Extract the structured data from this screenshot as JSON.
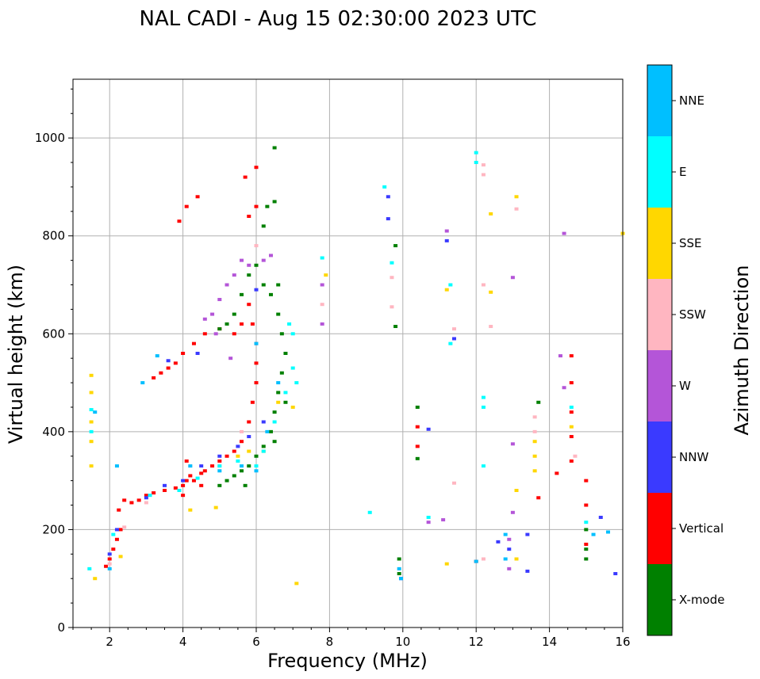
{
  "chart_data": {
    "type": "scatter",
    "title": "NAL CADI - Aug 15 02:30:00 2023 UTC",
    "xlabel": "Frequency (MHz)",
    "ylabel": "Virtual height (km)",
    "xlim": [
      1,
      16
    ],
    "ylim": [
      0,
      1120
    ],
    "xticks": [
      2,
      4,
      6,
      8,
      10,
      12,
      14,
      16
    ],
    "xtick_labels": [
      "2",
      "4",
      "6",
      "8",
      "10",
      "12",
      "14",
      "16"
    ],
    "yticks": [
      0,
      200,
      400,
      600,
      800,
      1000
    ],
    "ytick_labels": [
      "0",
      "200",
      "400",
      "600",
      "800",
      "1000"
    ],
    "grid": true,
    "colorbar": {
      "label": "Azimuth Direction",
      "categories": [
        {
          "name": "X-mode",
          "color": "#008000"
        },
        {
          "name": "Vertical",
          "color": "#ff0000"
        },
        {
          "name": "NNW",
          "color": "#3a3aff"
        },
        {
          "name": "W",
          "color": "#b455d8"
        },
        {
          "name": "SSW",
          "color": "#ffb6c1"
        },
        {
          "name": "SSE",
          "color": "#ffd700"
        },
        {
          "name": "E",
          "color": "#00ffff"
        },
        {
          "name": "NNE",
          "color": "#00bfff"
        }
      ]
    },
    "series": [
      {
        "name": "Vertical",
        "points": [
          [
            1.9,
            125
          ],
          [
            2.0,
            140
          ],
          [
            2.1,
            160
          ],
          [
            2.2,
            180
          ],
          [
            2.3,
            200
          ],
          [
            2.25,
            240
          ],
          [
            2.4,
            260
          ],
          [
            2.6,
            255
          ],
          [
            2.8,
            260
          ],
          [
            3.0,
            270
          ],
          [
            3.2,
            275
          ],
          [
            3.5,
            280
          ],
          [
            3.8,
            285
          ],
          [
            4.0,
            290
          ],
          [
            4.0,
            270
          ],
          [
            4.1,
            300
          ],
          [
            4.2,
            310
          ],
          [
            4.3,
            300
          ],
          [
            4.5,
            315
          ],
          [
            4.6,
            320
          ],
          [
            4.8,
            330
          ],
          [
            5.0,
            340
          ],
          [
            5.2,
            350
          ],
          [
            5.4,
            360
          ],
          [
            5.6,
            380
          ],
          [
            5.8,
            420
          ],
          [
            5.9,
            460
          ],
          [
            6.0,
            500
          ],
          [
            6.0,
            540
          ],
          [
            6.0,
            580
          ],
          [
            5.9,
            620
          ],
          [
            5.8,
            660
          ],
          [
            5.6,
            620
          ],
          [
            5.4,
            600
          ],
          [
            5.0,
            610
          ],
          [
            4.6,
            600
          ],
          [
            4.3,
            580
          ],
          [
            4.0,
            560
          ],
          [
            3.8,
            540
          ],
          [
            3.6,
            530
          ],
          [
            3.4,
            520
          ],
          [
            3.2,
            510
          ],
          [
            6.0,
            860
          ],
          [
            5.8,
            840
          ],
          [
            6.0,
            940
          ],
          [
            5.7,
            920
          ],
          [
            4.1,
            860
          ],
          [
            4.4,
            880
          ],
          [
            3.9,
            830
          ],
          [
            10.4,
            410
          ],
          [
            10.4,
            370
          ],
          [
            12.0,
            135
          ],
          [
            13.7,
            265
          ],
          [
            14.2,
            315
          ],
          [
            14.6,
            555
          ],
          [
            14.6,
            500
          ],
          [
            14.6,
            440
          ],
          [
            14.6,
            390
          ],
          [
            15.0,
            300
          ],
          [
            15.0,
            250
          ],
          [
            15.0,
            170
          ],
          [
            14.6,
            340
          ],
          [
            4.1,
            340
          ],
          [
            4.5,
            290
          ]
        ]
      },
      {
        "name": "X-mode",
        "points": [
          [
            5.0,
            290
          ],
          [
            5.2,
            300
          ],
          [
            5.4,
            310
          ],
          [
            5.6,
            320
          ],
          [
            5.8,
            330
          ],
          [
            6.0,
            350
          ],
          [
            6.2,
            370
          ],
          [
            6.4,
            400
          ],
          [
            6.5,
            440
          ],
          [
            6.6,
            480
          ],
          [
            6.7,
            520
          ],
          [
            6.8,
            560
          ],
          [
            6.7,
            600
          ],
          [
            6.6,
            640
          ],
          [
            6.4,
            680
          ],
          [
            6.2,
            700
          ],
          [
            6.0,
            740
          ],
          [
            5.8,
            720
          ],
          [
            5.6,
            680
          ],
          [
            5.4,
            640
          ],
          [
            5.2,
            620
          ],
          [
            5.0,
            610
          ],
          [
            6.2,
            820
          ],
          [
            6.5,
            870
          ],
          [
            6.5,
            980
          ],
          [
            6.3,
            860
          ],
          [
            6.6,
            700
          ],
          [
            9.8,
            780
          ],
          [
            9.8,
            615
          ],
          [
            9.9,
            140
          ],
          [
            9.9,
            110
          ],
          [
            10.4,
            450
          ],
          [
            10.4,
            345
          ],
          [
            13.7,
            460
          ],
          [
            15.0,
            160
          ],
          [
            15.0,
            200
          ],
          [
            15.0,
            140
          ],
          [
            6.8,
            460
          ],
          [
            6.5,
            380
          ],
          [
            5.7,
            290
          ]
        ]
      },
      {
        "name": "NNW",
        "points": [
          [
            2.0,
            150
          ],
          [
            2.2,
            200
          ],
          [
            3.0,
            265
          ],
          [
            3.5,
            290
          ],
          [
            4.0,
            300
          ],
          [
            4.5,
            330
          ],
          [
            5.0,
            350
          ],
          [
            5.5,
            370
          ],
          [
            5.8,
            390
          ],
          [
            6.2,
            420
          ],
          [
            3.6,
            545
          ],
          [
            4.4,
            560
          ],
          [
            6.0,
            690
          ],
          [
            9.6,
            880
          ],
          [
            9.6,
            835
          ],
          [
            11.2,
            790
          ],
          [
            11.4,
            590
          ],
          [
            12.9,
            160
          ],
          [
            13.4,
            190
          ],
          [
            13.4,
            115
          ],
          [
            12.6,
            175
          ],
          [
            15.4,
            225
          ],
          [
            15.8,
            110
          ],
          [
            9.95,
            100
          ],
          [
            10.7,
            405
          ]
        ]
      },
      {
        "name": "W",
        "points": [
          [
            5.2,
            700
          ],
          [
            5.4,
            720
          ],
          [
            5.6,
            750
          ],
          [
            5.8,
            740
          ],
          [
            6.2,
            750
          ],
          [
            6.4,
            760
          ],
          [
            5.0,
            670
          ],
          [
            4.8,
            640
          ],
          [
            4.6,
            630
          ],
          [
            5.3,
            550
          ],
          [
            4.9,
            600
          ],
          [
            7.8,
            620
          ],
          [
            7.8,
            700
          ],
          [
            11.2,
            810
          ],
          [
            13.0,
            715
          ],
          [
            13.0,
            375
          ],
          [
            13.0,
            235
          ],
          [
            10.7,
            215
          ],
          [
            11.1,
            220
          ],
          [
            14.4,
            490
          ],
          [
            14.3,
            555
          ],
          [
            14.4,
            805
          ],
          [
            12.9,
            120
          ],
          [
            12.9,
            180
          ]
        ]
      },
      {
        "name": "SSW",
        "points": [
          [
            2.0,
            130
          ],
          [
            2.4,
            205
          ],
          [
            3.0,
            255
          ],
          [
            4.2,
            330
          ],
          [
            5.0,
            330
          ],
          [
            5.6,
            400
          ],
          [
            6.0,
            780
          ],
          [
            7.8,
            660
          ],
          [
            9.7,
            715
          ],
          [
            9.7,
            655
          ],
          [
            11.4,
            610
          ],
          [
            11.4,
            295
          ],
          [
            12.2,
            945
          ],
          [
            12.2,
            925
          ],
          [
            12.2,
            700
          ],
          [
            12.4,
            615
          ],
          [
            12.2,
            140
          ],
          [
            13.1,
            855
          ],
          [
            13.6,
            430
          ],
          [
            13.6,
            400
          ],
          [
            14.7,
            350
          ]
        ]
      },
      {
        "name": "SSE",
        "points": [
          [
            1.5,
            515
          ],
          [
            1.5,
            480
          ],
          [
            1.5,
            420
          ],
          [
            1.5,
            380
          ],
          [
            1.5,
            330
          ],
          [
            1.6,
            100
          ],
          [
            2.3,
            145
          ],
          [
            4.2,
            240
          ],
          [
            4.9,
            245
          ],
          [
            5.5,
            350
          ],
          [
            5.8,
            360
          ],
          [
            6.2,
            360
          ],
          [
            6.6,
            460
          ],
          [
            7.0,
            450
          ],
          [
            7.1,
            90
          ],
          [
            7.9,
            720
          ],
          [
            11.2,
            690
          ],
          [
            11.2,
            130
          ],
          [
            12.4,
            845
          ],
          [
            12.4,
            685
          ],
          [
            13.1,
            880
          ],
          [
            13.1,
            280
          ],
          [
            13.1,
            140
          ],
          [
            13.6,
            380
          ],
          [
            13.6,
            350
          ],
          [
            13.6,
            320
          ],
          [
            14.6,
            410
          ],
          [
            16.0,
            805
          ]
        ]
      },
      {
        "name": "E",
        "points": [
          [
            1.5,
            445
          ],
          [
            1.5,
            400
          ],
          [
            1.45,
            120
          ],
          [
            2.1,
            190
          ],
          [
            3.1,
            270
          ],
          [
            3.9,
            280
          ],
          [
            4.4,
            305
          ],
          [
            5.0,
            330
          ],
          [
            5.5,
            340
          ],
          [
            6.0,
            330
          ],
          [
            6.2,
            360
          ],
          [
            6.5,
            420
          ],
          [
            6.8,
            480
          ],
          [
            7.0,
            530
          ],
          [
            7.1,
            500
          ],
          [
            7.0,
            600
          ],
          [
            6.9,
            620
          ],
          [
            7.8,
            755
          ],
          [
            9.5,
            900
          ],
          [
            9.1,
            235
          ],
          [
            9.7,
            745
          ],
          [
            10.7,
            225
          ],
          [
            11.3,
            700
          ],
          [
            11.3,
            580
          ],
          [
            12.0,
            970
          ],
          [
            12.0,
            950
          ],
          [
            12.2,
            470
          ],
          [
            12.2,
            450
          ],
          [
            12.2,
            330
          ],
          [
            14.6,
            450
          ],
          [
            15.0,
            215
          ]
        ]
      },
      {
        "name": "NNE",
        "points": [
          [
            1.6,
            440
          ],
          [
            2.0,
            120
          ],
          [
            2.2,
            330
          ],
          [
            3.3,
            555
          ],
          [
            2.9,
            500
          ],
          [
            4.2,
            330
          ],
          [
            5.0,
            320
          ],
          [
            5.6,
            330
          ],
          [
            6.0,
            320
          ],
          [
            6.3,
            400
          ],
          [
            6.6,
            500
          ],
          [
            6.0,
            580
          ],
          [
            9.9,
            120
          ],
          [
            9.95,
            100
          ],
          [
            12.0,
            135
          ],
          [
            12.8,
            140
          ],
          [
            12.8,
            190
          ],
          [
            15.2,
            190
          ],
          [
            15.6,
            195
          ]
        ]
      }
    ]
  }
}
